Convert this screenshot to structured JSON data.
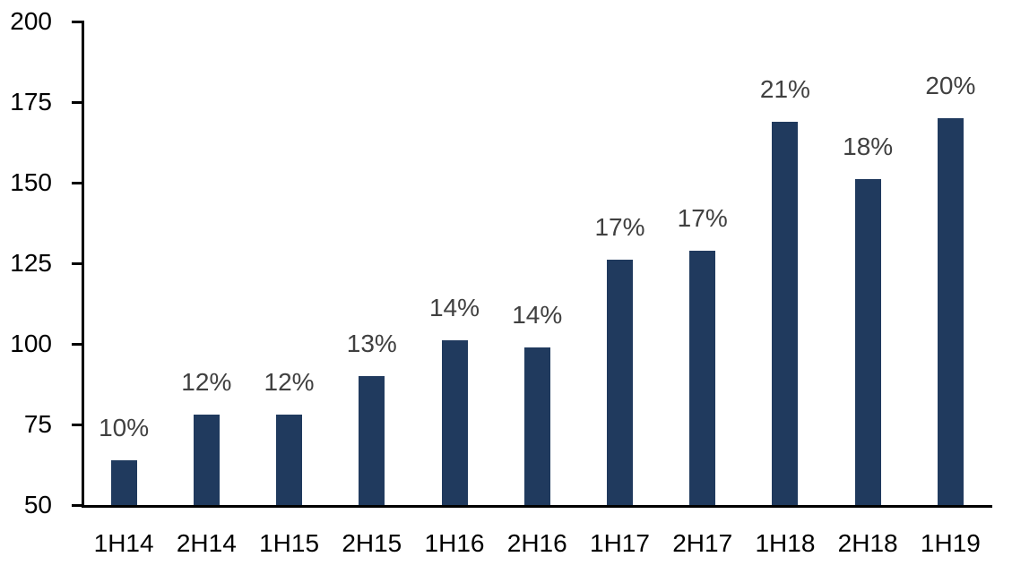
{
  "chart_data": {
    "type": "bar",
    "title": "",
    "xlabel": "",
    "ylabel": "",
    "categories": [
      "1H14",
      "2H14",
      "1H15",
      "2H15",
      "1H16",
      "2H16",
      "1H17",
      "2H17",
      "1H18",
      "2H18",
      "1H19"
    ],
    "values": [
      64,
      78,
      78,
      90,
      101,
      99,
      126,
      129,
      169,
      151,
      170
    ],
    "bar_labels": [
      "10%",
      "12%",
      "12%",
      "13%",
      "14%",
      "14%",
      "17%",
      "17%",
      "21%",
      "18%",
      "20%"
    ],
    "ylim": [
      50,
      200
    ],
    "yticks": [
      50,
      75,
      100,
      125,
      150,
      175,
      200
    ],
    "grid": false,
    "legend": "none",
    "colors": {
      "bar": "#203A5E",
      "bar_label": "#404040",
      "axis": "#000000",
      "tick_label": "#000000",
      "background": "#FFFFFF"
    }
  }
}
